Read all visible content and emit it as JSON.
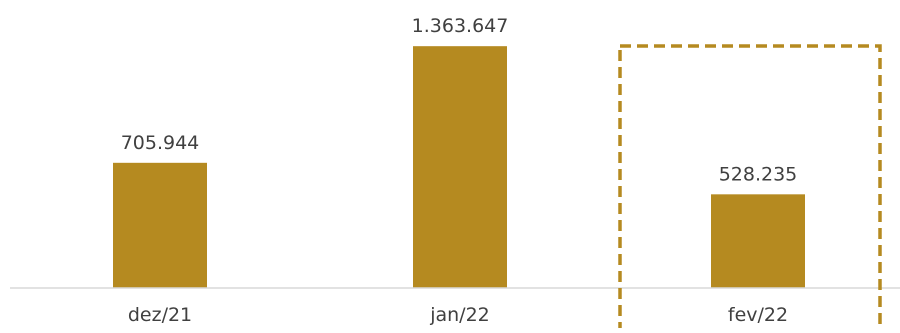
{
  "chart_data": {
    "type": "bar",
    "categories": [
      "dez/21",
      "jan/22",
      "fev/22"
    ],
    "values": [
      705944,
      1363647,
      528235
    ],
    "value_labels": [
      "705.944",
      "1.363.647",
      "528.235"
    ],
    "ylim": [
      0,
      1500000
    ],
    "grid": false,
    "legend": "none",
    "highlighted_category": "fev/22",
    "colors": {
      "bar": "#B58A20",
      "highlight_box": "#B58A20",
      "axis": "#D9D9D9",
      "text": "#404040"
    }
  }
}
